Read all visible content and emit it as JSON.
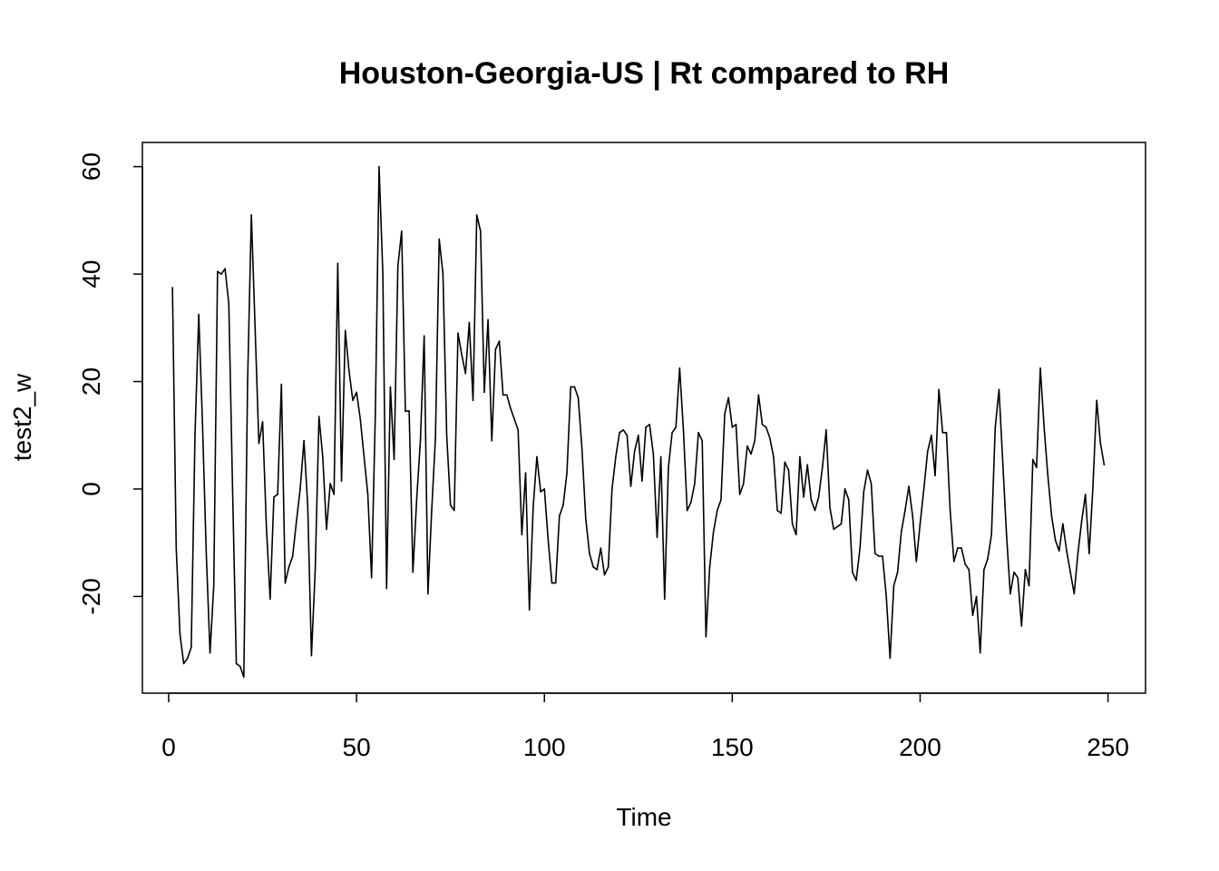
{
  "chart_data": {
    "type": "line",
    "title": "Houston-Georgia-US | Rt compared to RH",
    "xlabel": "Time",
    "ylabel": "test2_w",
    "xlim": [
      -7,
      260
    ],
    "ylim": [
      -38,
      64.5
    ],
    "x_ticks": [
      0,
      50,
      100,
      150,
      200,
      250
    ],
    "y_ticks": [
      -20,
      0,
      20,
      40,
      60
    ],
    "grid": false,
    "line_color": "#000000",
    "series": [
      {
        "x_start": 1,
        "x_step": 1,
        "values": [
          37.5,
          -11.0,
          -27.0,
          -32.5,
          -31.5,
          -29.5,
          10.0,
          32.5,
          12.0,
          -12.0,
          -30.5,
          -18.0,
          40.5,
          40.0,
          41.0,
          34.5,
          0.0,
          -32.5,
          -33.0,
          -35.0,
          20.0,
          51.0,
          30.0,
          8.5,
          12.5,
          -7.0,
          -20.5,
          -1.5,
          -1.0,
          19.5,
          -17.5,
          -14.5,
          -12.5,
          -6.0,
          0.0,
          9.0,
          -3.0,
          -31.0,
          -15.0,
          13.5,
          6.0,
          -7.5,
          1.0,
          -1.0,
          42.0,
          1.5,
          29.5,
          22.0,
          16.5,
          18.0,
          13.0,
          6.0,
          -1.0,
          -16.5,
          14.0,
          60.0,
          40.0,
          -18.5,
          19.0,
          5.5,
          41.5,
          48.0,
          14.5,
          14.5,
          -15.5,
          -2.0,
          9.0,
          28.5,
          -19.5,
          -4.0,
          9.5,
          46.5,
          40.0,
          10.0,
          -3.0,
          -4.0,
          29.0,
          25.0,
          21.5,
          31.0,
          16.5,
          51.0,
          48.0,
          18.0,
          31.5,
          9.0,
          26.0,
          27.5,
          17.5,
          17.5,
          15.0,
          13.0,
          11.0,
          -8.5,
          3.0,
          -22.5,
          -3.5,
          6.0,
          -0.5,
          0.0,
          -9.5,
          -17.5,
          -17.5,
          -5.0,
          -3.0,
          3.0,
          19.0,
          19.0,
          17.0,
          7.5,
          -5.5,
          -12.0,
          -14.5,
          -15.0,
          -11.0,
          -16.0,
          -14.5,
          0.0,
          6.0,
          10.5,
          11.0,
          10.0,
          0.5,
          7.0,
          10.0,
          1.5,
          11.5,
          12.0,
          6.5,
          -9.0,
          6.0,
          -20.5,
          4.0,
          10.5,
          11.5,
          22.5,
          11.0,
          -4.0,
          -2.5,
          1.0,
          10.5,
          9.0,
          -27.5,
          -14.5,
          -8.0,
          -4.0,
          -2.0,
          14.0,
          17.0,
          11.5,
          12.0,
          -1.0,
          1.0,
          8.0,
          6.5,
          9.0,
          17.5,
          12.0,
          11.5,
          9.5,
          6.0,
          -4.0,
          -4.5,
          5.0,
          3.5,
          -6.5,
          -8.5,
          6.0,
          -1.5,
          4.5,
          -2.0,
          -4.0,
          -1.5,
          4.0,
          11.0,
          -3.5,
          -7.5,
          -7.0,
          -6.5,
          0.0,
          -2.0,
          -15.5,
          -17.0,
          -11.0,
          -0.5,
          3.5,
          1.0,
          -12.0,
          -12.5,
          -12.5,
          -20.0,
          -31.5,
          -18.0,
          -15.5,
          -8.0,
          -4.0,
          0.5,
          -5.0,
          -13.5,
          -6.5,
          0.0,
          7.0,
          10.0,
          2.5,
          18.5,
          10.5,
          10.5,
          -4.0,
          -13.5,
          -11.0,
          -11.0,
          -14.0,
          -15.0,
          -23.5,
          -20.0,
          -30.5,
          -15.0,
          -13.0,
          -8.5,
          11.5,
          18.5,
          5.0,
          -8.5,
          -19.5,
          -15.5,
          -16.5,
          -25.5,
          -15.0,
          -18.0,
          5.5,
          4.0,
          22.5,
          11.5,
          2.5,
          -5.0,
          -9.5,
          -11.5,
          -6.5,
          -11.5,
          -15.5,
          -19.5,
          -12.0,
          -6.0,
          -1.0,
          -12.0,
          0.5,
          16.5,
          8.5,
          4.5
        ]
      }
    ]
  }
}
